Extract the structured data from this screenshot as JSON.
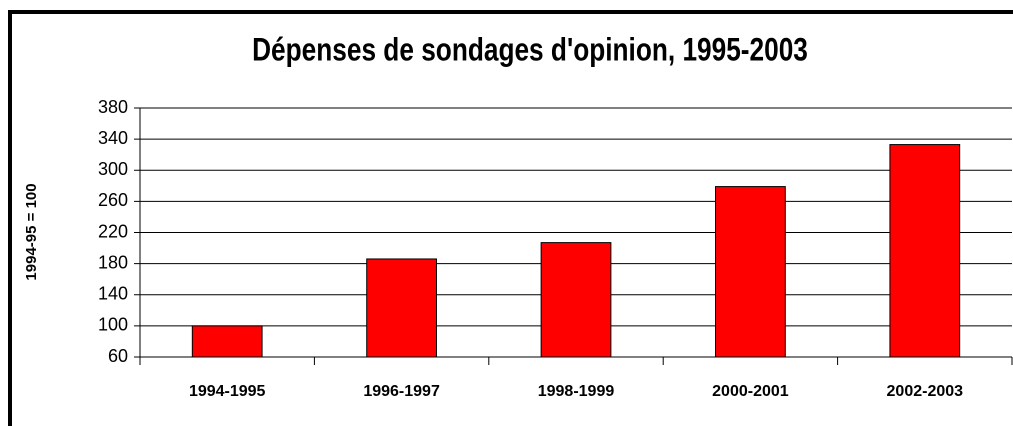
{
  "chart_data": {
    "type": "bar",
    "title": "Dépenses de sondages d'opinion, 1995-2003",
    "y_label": "1994-95 = 100",
    "categories": [
      "1994-1995",
      "1996-1997",
      "1998-1999",
      "2000-2001",
      "2002-2003"
    ],
    "values": [
      100,
      186,
      207,
      279,
      333
    ],
    "color": "#ff0000",
    "ylim": [
      60,
      380
    ],
    "yticks": [
      60,
      100,
      140,
      180,
      220,
      260,
      300,
      340,
      380
    ],
    "grid": true
  }
}
